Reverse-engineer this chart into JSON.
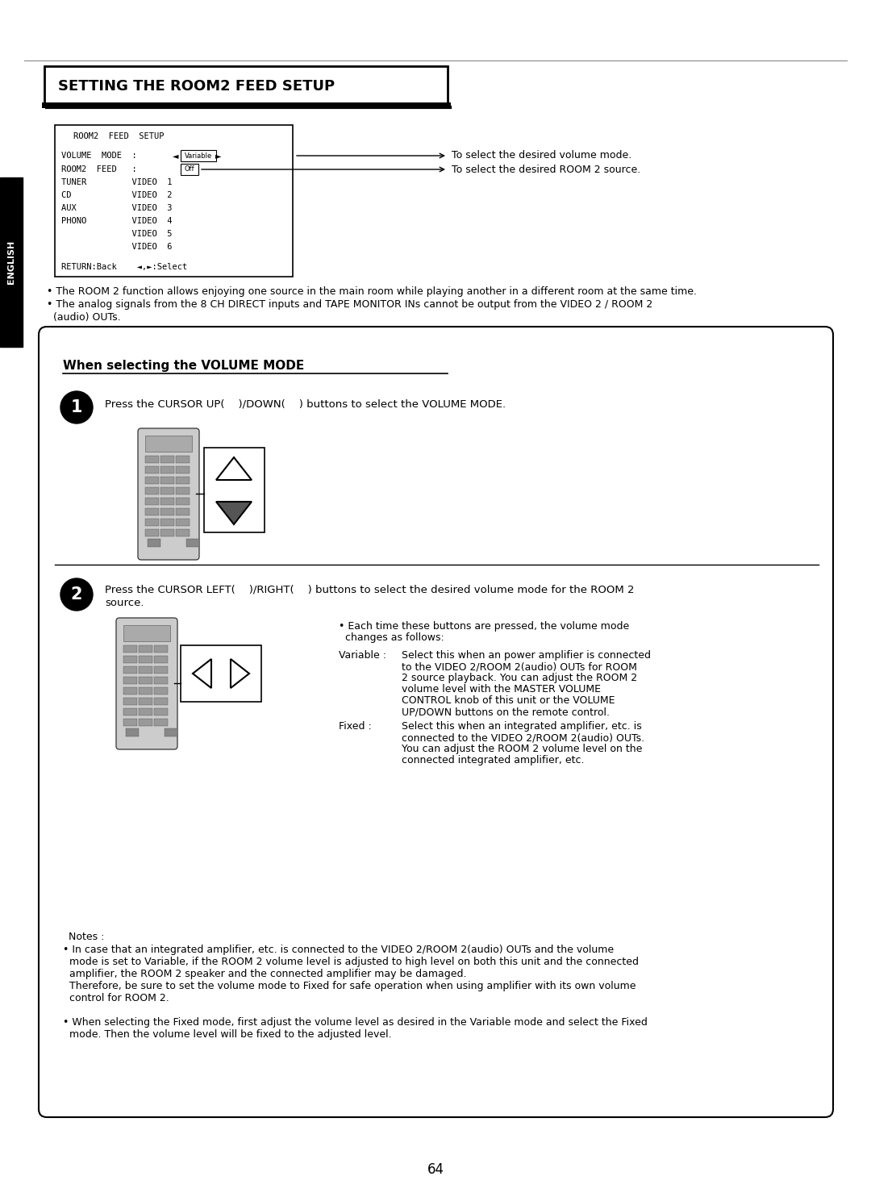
{
  "page_bg": "#ffffff",
  "page_number": "64",
  "title_heading": "SETTING THE ROOM2 FEED SETUP",
  "menu_note1": "To select the desired volume mode.",
  "menu_note2": "To select the desired ROOM 2 source.",
  "bullet1": "• The ROOM 2 function allows enjoying one source in the main room while playing another in a different room at the same time.",
  "bullet2_line1": "• The analog signals from the 8 CH DIRECT inputs and TAPE MONITOR INs cannot be output from the VIDEO 2 / ROOM 2",
  "bullet2_line2": "  (audio) OUTs.",
  "section_heading": "When selecting the VOLUME MODE",
  "step1_text": "Press the CURSOR UP(    )/DOWN(    ) buttons to select the VOLUME MODE.",
  "step2_line1": "Press the CURSOR LEFT(    )/RIGHT(    ) buttons to select the desired volume mode for the ROOM 2",
  "step2_line2": "source.",
  "bullet_each_line1": "• Each time these buttons are pressed, the volume mode",
  "bullet_each_line2": "  changes as follows:",
  "notes_heading": "Notes :",
  "note1_line1": "• In case that an integrated amplifier, etc. is connected to the VIDEO 2/ROOM 2(audio) OUTs and the volume",
  "note1_line2": "  mode is set to Variable, if the ROOM 2 volume level is adjusted to high level on both this unit and the connected",
  "note1_line3": "  amplifier, the ROOM 2 speaker and the connected amplifier may be damaged.",
  "note1_line4": "  Therefore, be sure to set the volume mode to Fixed for safe operation when using amplifier with its own volume",
  "note1_line5": "  control for ROOM 2.",
  "note2_line1": "• When selecting the Fixed mode, first adjust the volume level as desired in the Variable mode and select the Fixed",
  "note2_line2": "  mode. Then the volume level will be fixed to the adjusted level."
}
